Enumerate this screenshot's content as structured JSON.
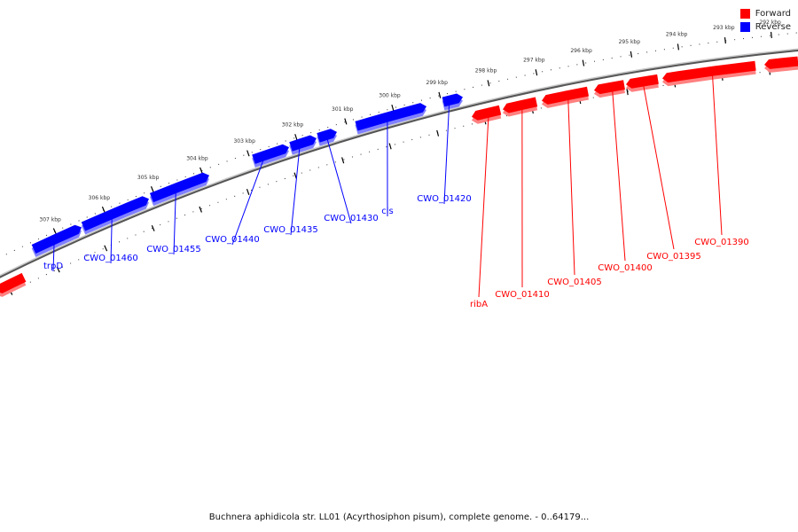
{
  "legend": [
    {
      "label": "Forward",
      "color": "#ff0000"
    },
    {
      "label": "Reverse",
      "color": "#0000ff"
    }
  ],
  "caption": "Buchnera aphidicola str. LL01 (Acyrthosiphon pisum), complete genome. - 0..64179...",
  "colors": {
    "forward": "#ff0000",
    "reverse": "#0000ff",
    "backbone": "#808080"
  },
  "ruler": {
    "outer_unit": "kbp",
    "outer_labels": [
      "307 kbp",
      "306 kbp",
      "305 kbp",
      "304 kbp",
      "303 kbp",
      "302 kbp",
      "301 kbp",
      "300 kbp",
      "299 kbp",
      "298 kbp",
      "297 kbp",
      "296 kbp",
      "295 kbp",
      "294 kbp",
      "293 kbp",
      "292 kbp"
    ]
  },
  "genes": [
    {
      "name": "trpD",
      "strand": "reverse"
    },
    {
      "name": "CWO_01460",
      "strand": "reverse"
    },
    {
      "name": "CWO_01455",
      "strand": "reverse"
    },
    {
      "name": "CWO_01440",
      "strand": "reverse"
    },
    {
      "name": "CWO_01435",
      "strand": "reverse"
    },
    {
      "name": "CWO_01430",
      "strand": "reverse"
    },
    {
      "name": "cls",
      "strand": "reverse"
    },
    {
      "name": "CWO_01420",
      "strand": "reverse"
    },
    {
      "name": "ribA",
      "strand": "forward"
    },
    {
      "name": "CWO_01410",
      "strand": "forward"
    },
    {
      "name": "CWO_01405",
      "strand": "forward"
    },
    {
      "name": "CWO_01400",
      "strand": "forward"
    },
    {
      "name": "CWO_01395",
      "strand": "forward"
    },
    {
      "name": "CWO_01390",
      "strand": "forward"
    }
  ]
}
